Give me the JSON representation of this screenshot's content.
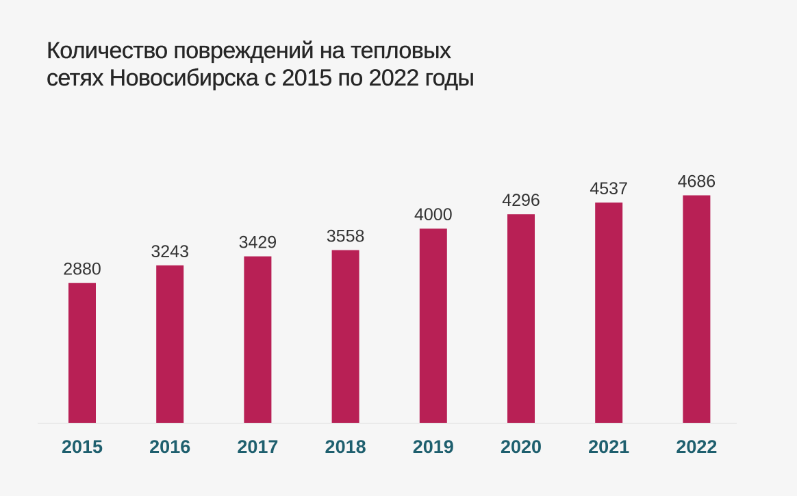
{
  "title": {
    "line1": "Количество повреждений на тепловых",
    "line2": "сетях Новосибирска с 2015 по 2022 годы"
  },
  "colors": {
    "background": "#f6f6f6",
    "bar": "#b82055",
    "year_label": "#1e5f6e",
    "value_label": "#333333",
    "baseline": "#dddddd"
  },
  "chart_data": {
    "type": "bar",
    "categories": [
      "2015",
      "2016",
      "2017",
      "2018",
      "2019",
      "2020",
      "2021",
      "2022"
    ],
    "values": [
      2880,
      3243,
      3429,
      3558,
      4000,
      4296,
      4537,
      4686
    ],
    "xlabel": "",
    "ylabel": "",
    "ylim": [
      0,
      5000
    ],
    "grid": false,
    "legend": "none",
    "data_labels": true
  }
}
